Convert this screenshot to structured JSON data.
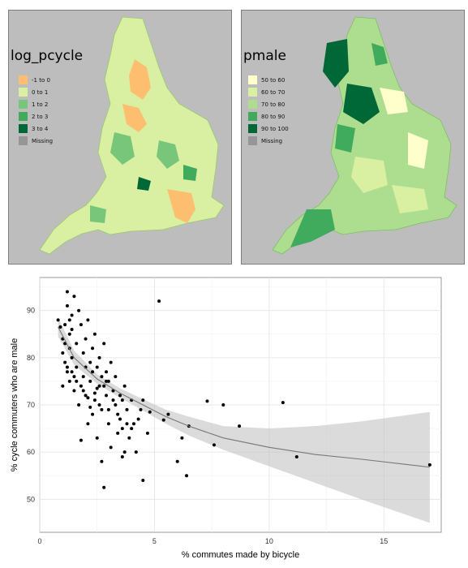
{
  "maps": [
    {
      "title": "log_pcycle",
      "legend": [
        {
          "label": "-1 to 0",
          "color": "#fdbf6f"
        },
        {
          "label": "0 to 1",
          "color": "#d9f0a3"
        },
        {
          "label": "1 to 2",
          "color": "#78c679"
        },
        {
          "label": "2 to 3",
          "color": "#41ab5d"
        },
        {
          "label": "3 to 4",
          "color": "#006837"
        },
        {
          "label": "Missing",
          "color": "#969696"
        }
      ]
    },
    {
      "title": "pmale",
      "legend": [
        {
          "label": "50 to 60",
          "color": "#ffffcc"
        },
        {
          "label": "60 to 70",
          "color": "#d9f0a3"
        },
        {
          "label": "70 to 80",
          "color": "#addd8e"
        },
        {
          "label": "80 to 90",
          "color": "#41ab5d"
        },
        {
          "label": "90 to 100",
          "color": "#006837"
        },
        {
          "label": "Missing",
          "color": "#969696"
        }
      ]
    }
  ],
  "chart_data": {
    "type": "scatter",
    "title": "",
    "xlabel": "% commutes made by bicycle",
    "ylabel": "% cycle commuters who are male",
    "xlim": [
      0,
      17.5
    ],
    "ylim": [
      43,
      97
    ],
    "xticks": [
      0,
      5,
      10,
      15
    ],
    "yticks": [
      50,
      60,
      70,
      80,
      90
    ],
    "grid": true,
    "points": [
      [
        0.8,
        88
      ],
      [
        0.9,
        86.5
      ],
      [
        1.0,
        84
      ],
      [
        1.0,
        81
      ],
      [
        1.1,
        87
      ],
      [
        1.1,
        79
      ],
      [
        1.2,
        91
      ],
      [
        1.2,
        94
      ],
      [
        1.2,
        77
      ],
      [
        1.3,
        85
      ],
      [
        1.3,
        82
      ],
      [
        1.3,
        75
      ],
      [
        1.4,
        89
      ],
      [
        1.4,
        86
      ],
      [
        1.4,
        80
      ],
      [
        1.5,
        93
      ],
      [
        1.5,
        73
      ],
      [
        1.6,
        83
      ],
      [
        1.6,
        78
      ],
      [
        1.7,
        90
      ],
      [
        1.7,
        70
      ],
      [
        1.8,
        87
      ],
      [
        1.8,
        62.5
      ],
      [
        1.9,
        81
      ],
      [
        1.9,
        76
      ],
      [
        2.0,
        84
      ],
      [
        2.0,
        72
      ],
      [
        2.1,
        88
      ],
      [
        2.1,
        66
      ],
      [
        2.2,
        79
      ],
      [
        2.2,
        75
      ],
      [
        2.3,
        82
      ],
      [
        2.3,
        68
      ],
      [
        2.4,
        85
      ],
      [
        2.4,
        71
      ],
      [
        2.5,
        78
      ],
      [
        2.5,
        63
      ],
      [
        2.6,
        80
      ],
      [
        2.6,
        74
      ],
      [
        2.7,
        76
      ],
      [
        2.7,
        69
      ],
      [
        2.8,
        83
      ],
      [
        2.8,
        52.5
      ],
      [
        2.9,
        77
      ],
      [
        2.9,
        72
      ],
      [
        3.0,
        75
      ],
      [
        3.0,
        66
      ],
      [
        3.1,
        79
      ],
      [
        3.1,
        61
      ],
      [
        3.2,
        73
      ],
      [
        3.3,
        70
      ],
      [
        3.3,
        76
      ],
      [
        3.4,
        68
      ],
      [
        3.5,
        72
      ],
      [
        3.6,
        65
      ],
      [
        3.6,
        59
      ],
      [
        3.7,
        74
      ],
      [
        3.8,
        69
      ],
      [
        3.9,
        63
      ],
      [
        4.0,
        71
      ],
      [
        4.1,
        66
      ],
      [
        4.2,
        60
      ],
      [
        4.3,
        67
      ],
      [
        4.5,
        54
      ],
      [
        4.5,
        71
      ],
      [
        4.7,
        64
      ],
      [
        5.2,
        92
      ],
      [
        5.4,
        66.8
      ],
      [
        5.6,
        68
      ],
      [
        6.0,
        58
      ],
      [
        6.2,
        63
      ],
      [
        6.4,
        55
      ],
      [
        6.5,
        65.5
      ],
      [
        7.3,
        70.8
      ],
      [
        7.6,
        61.5
      ],
      [
        8.0,
        70
      ],
      [
        8.7,
        65.5
      ],
      [
        10.6,
        70.5
      ],
      [
        11.2,
        59
      ],
      [
        17.0,
        57.3
      ],
      [
        1.0,
        74
      ],
      [
        1.5,
        76
      ],
      [
        2.0,
        78
      ],
      [
        2.3,
        77
      ],
      [
        2.5,
        73.5
      ],
      [
        2.8,
        74
      ],
      [
        3.2,
        71
      ],
      [
        3.5,
        67
      ],
      [
        1.8,
        74
      ],
      [
        2.1,
        71.5
      ],
      [
        2.6,
        70
      ],
      [
        3.0,
        69
      ],
      [
        3.4,
        64
      ],
      [
        1.2,
        78
      ],
      [
        1.6,
        75
      ],
      [
        2.4,
        72.5
      ],
      [
        2.9,
        75
      ],
      [
        3.6,
        71
      ],
      [
        4.0,
        65
      ],
      [
        4.4,
        69
      ],
      [
        1.1,
        83
      ],
      [
        1.4,
        77
      ],
      [
        1.9,
        73
      ],
      [
        2.2,
        69.5
      ],
      [
        3.8,
        66
      ],
      [
        4.8,
        68.5
      ],
      [
        2.7,
        58
      ],
      [
        3.7,
        60
      ],
      [
        1.3,
        88
      ]
    ],
    "smooth": {
      "x": [
        0.8,
        1.5,
        2.5,
        3.5,
        4.5,
        5.5,
        6.5,
        8.0,
        10.0,
        12.0,
        14.0,
        17.0
      ],
      "y": [
        86.5,
        80,
        75.5,
        72.5,
        70,
        67.5,
        65.5,
        63,
        61,
        59.5,
        58.5,
        56.8
      ],
      "lower": [
        84.5,
        78.5,
        74.5,
        71.5,
        68.8,
        66,
        63.5,
        60.5,
        57,
        53.5,
        50,
        45
      ],
      "upper": [
        88.5,
        81.5,
        76.5,
        73.5,
        71.2,
        69,
        67.5,
        65.5,
        65,
        65.5,
        66.5,
        68.5
      ]
    }
  }
}
